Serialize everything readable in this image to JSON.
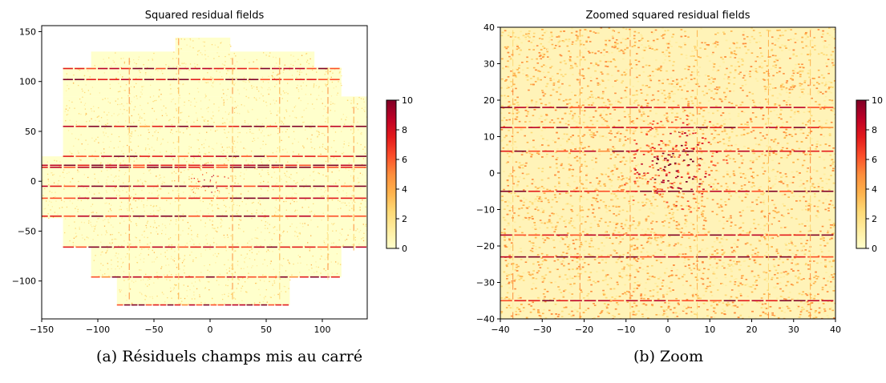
{
  "chart_data": [
    {
      "type": "heatmap",
      "title": "Squared residual fields",
      "xlabel": "",
      "ylabel": "",
      "xlim": [
        -150,
        140
      ],
      "ylim": [
        -138,
        156
      ],
      "x_ticks": [
        -150,
        -100,
        -50,
        0,
        50,
        100
      ],
      "y_ticks": [
        -100,
        -50,
        0,
        50,
        100,
        150
      ],
      "colorbar": {
        "min": 0,
        "max": 10,
        "ticks": [
          0,
          2,
          4,
          6,
          8,
          10
        ],
        "colormap": "YlOrRd"
      },
      "footprint": {
        "description_free": true,
        "rows": [
          {
            "y": [
              130,
              144
            ],
            "x": [
              -31,
              18
            ]
          },
          {
            "y": [
              114,
              130
            ],
            "x": [
              -106,
              93
            ]
          },
          {
            "y": [
              85,
              114
            ],
            "x": [
              -131,
              117
            ]
          },
          {
            "y": [
              55,
              85
            ],
            "x": [
              -131,
              141
            ]
          },
          {
            "y": [
              25,
              55
            ],
            "x": [
              -131,
              141
            ]
          },
          {
            "y": [
              -37,
              25
            ],
            "x": [
              -155,
              141
            ]
          },
          {
            "y": [
              -66,
              -37
            ],
            "x": [
              -131,
              141
            ]
          },
          {
            "y": [
              -96,
              -66
            ],
            "x": [
              -106,
              117
            ]
          },
          {
            "y": [
              -124,
              -96
            ],
            "x": [
              -83,
              71
            ]
          }
        ]
      },
      "streaks_y": [
        113,
        102,
        55,
        25,
        16,
        14,
        -5,
        -17,
        -35,
        -66,
        -96,
        -124
      ],
      "streaks_x": [
        -72,
        -28,
        20,
        62,
        105,
        128
      ],
      "hotspot": [
        0,
        0
      ],
      "caption": "(a) Résiduels champs mis au carré"
    },
    {
      "type": "heatmap",
      "title": "Zoomed squared residual fields",
      "xlabel": "",
      "ylabel": "",
      "xlim": [
        -40,
        40
      ],
      "ylim": [
        -40,
        40
      ],
      "x_ticks": [
        -40,
        -30,
        -20,
        -10,
        0,
        10,
        20,
        30,
        40
      ],
      "y_ticks": [
        -40,
        -30,
        -20,
        -10,
        0,
        10,
        20,
        30,
        40
      ],
      "colorbar": {
        "min": 0,
        "max": 10,
        "ticks": [
          0,
          2,
          4,
          6,
          8,
          10
        ],
        "colormap": "YlOrRd"
      },
      "streaks_y": [
        18,
        12.5,
        6,
        -5,
        -17,
        -23,
        -35
      ],
      "streaks_x": [
        -37,
        -21,
        -9,
        7,
        24,
        34
      ],
      "hotspot": [
        2,
        2
      ],
      "caption": "(b) Zoom"
    }
  ],
  "colors": {
    "cmap": [
      "#ffffcc",
      "#ffeda0",
      "#fed976",
      "#feb24c",
      "#fd8d3c",
      "#fc4e2a",
      "#e31a1c",
      "#bd0026",
      "#800026"
    ]
  }
}
